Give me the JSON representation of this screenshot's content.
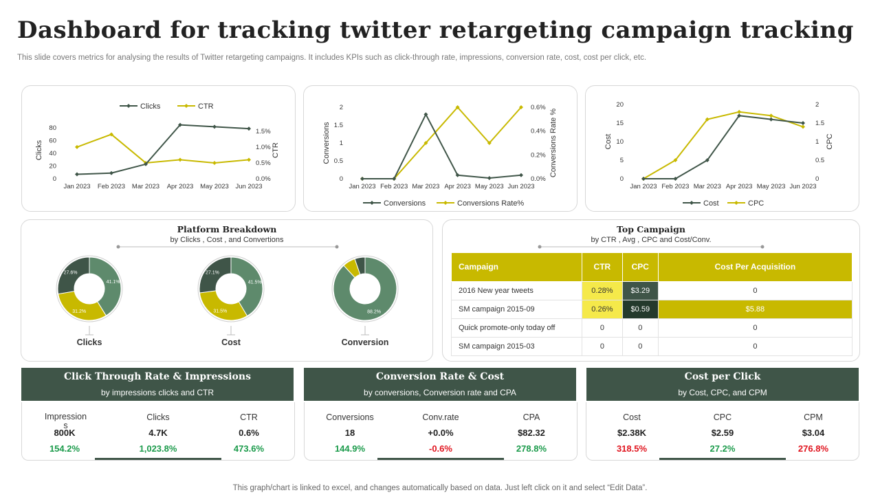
{
  "page": {
    "title": "Dashboard for tracking twitter retargeting campaign tracking",
    "subtitle": "This slide covers metrics for analysing the results of Twitter retargeting campaigns. It includes KPIs such as click-through rate, impressions, conversion rate, cost, cost per click, etc.",
    "footer": "This graph/chart is linked to excel,  and changes automatically based on data. Just left click on it and select “Edit Data”."
  },
  "colors": {
    "dark_green": "#3f5548",
    "mid_green": "#5e8a6c",
    "olive": "#c8b900",
    "light_yellow": "#f5e94a",
    "positive": "#1a9a4a",
    "negative": "#e0141e"
  },
  "chart_data": [
    {
      "type": "line",
      "x": [
        "Jan 2023",
        "Feb 2023",
        "Mar 2023",
        "Apr 2023",
        "May 2023",
        "Jun 2023"
      ],
      "series": [
        {
          "name": "Clicks",
          "axis": "left",
          "color": "#3f5548",
          "values": [
            7,
            9,
            23,
            85,
            82,
            79
          ]
        },
        {
          "name": "CTR",
          "axis": "right",
          "color": "#c8b900",
          "values": [
            1.0,
            1.4,
            0.5,
            0.6,
            0.5,
            0.6
          ]
        }
      ],
      "ylabel": "Clicks",
      "ylabel_right": "CTR",
      "ylim": [
        0,
        90
      ],
      "yticks": [
        "0",
        "20",
        "40",
        "60",
        "80"
      ],
      "ylim_right": [
        0,
        1.8
      ],
      "yticks_right": [
        "0.0%",
        "0.5%",
        "1.0%",
        "1.5%"
      ],
      "legend": "top"
    },
    {
      "type": "line",
      "x": [
        "Jan 2023",
        "Feb 2023",
        "Mar 2023",
        "Apr 2023",
        "May 2023",
        "Jun 2023"
      ],
      "series": [
        {
          "name": "Conversions",
          "axis": "left",
          "color": "#3f5548",
          "values": [
            0,
            0,
            1.8,
            0.1,
            0.02,
            0.1
          ]
        },
        {
          "name": "Conversions Rate%",
          "axis": "right",
          "color": "#c8b900",
          "values": [
            0,
            0,
            0.3,
            0.6,
            0.3,
            0.6
          ]
        }
      ],
      "ylabel": "Conversions",
      "ylabel_right": "Conversions Rate %",
      "ylim": [
        0,
        2
      ],
      "yticks": [
        "0",
        "0.5",
        "1",
        "1.5",
        "2"
      ],
      "ylim_right": [
        0,
        0.6
      ],
      "yticks_right": [
        "0.0%",
        "0.2%",
        "0.4%",
        "0.6%"
      ],
      "legend": "bottom"
    },
    {
      "type": "line",
      "x": [
        "Jan 2023",
        "Feb 2023",
        "Mar 2023",
        "Apr 2023",
        "May 2023",
        "Jun 2023"
      ],
      "series": [
        {
          "name": "Cost",
          "axis": "left",
          "color": "#3f5548",
          "values": [
            0,
            0,
            5,
            17,
            16,
            15
          ]
        },
        {
          "name": "CPC",
          "axis": "right",
          "color": "#c8b900",
          "values": [
            0,
            0.5,
            1.6,
            1.8,
            1.7,
            1.4
          ]
        }
      ],
      "ylabel": "Cost",
      "ylabel_right": "CPC",
      "ylim": [
        0,
        20
      ],
      "yticks": [
        "0",
        "5",
        "10",
        "15",
        "20"
      ],
      "ylim_right": [
        0,
        2
      ],
      "yticks_right": [
        "0",
        "0.5",
        "1",
        "1.5",
        "2"
      ],
      "legend": "bottom"
    },
    {
      "type": "pie",
      "title": "Platform Breakdown",
      "subtitle": "by Clicks , Cost , and Convertions",
      "donuts": [
        {
          "label": "Clicks",
          "slices": [
            {
              "value": 41.1,
              "label": "41.1%",
              "color": "#5e8a6c"
            },
            {
              "value": 31.2,
              "label": "31.2%",
              "color": "#c8b900"
            },
            {
              "value": 27.6,
              "label": "27.6%",
              "color": "#3f5548"
            }
          ]
        },
        {
          "label": "Cost",
          "slices": [
            {
              "value": 41.5,
              "label": "41.5%",
              "color": "#5e8a6c"
            },
            {
              "value": 31.5,
              "label": "31.5%",
              "color": "#c8b900"
            },
            {
              "value": 27.1,
              "label": "27.1%",
              "color": "#3f5548"
            }
          ]
        },
        {
          "label": "Conversion",
          "slices": [
            {
              "value": 88.2,
              "label": "88.2%",
              "color": "#5e8a6c"
            },
            {
              "value": 6.5,
              "label": "",
              "color": "#c8b900"
            },
            {
              "value": 5.3,
              "label": "",
              "color": "#3f5548"
            }
          ]
        }
      ]
    }
  ],
  "top_campaign": {
    "title": "Top Campaign",
    "subtitle": "by  CTR  , Avg , CPC  and Cost/Conv.",
    "headers": [
      "Campaign",
      "CTR",
      "CPC",
      "Cost Per Acquisition"
    ],
    "rows": [
      {
        "cells": [
          "2016 New year tweets",
          "0.28%",
          "$3.29",
          "0"
        ],
        "styles": [
          "",
          "yellow",
          "darkmid",
          ""
        ]
      },
      {
        "cells": [
          "SM campaign 2015-09",
          "0.26%",
          "$0.59",
          "$5.88"
        ],
        "styles": [
          "",
          "yellow",
          "dark",
          "olive"
        ]
      },
      {
        "cells": [
          "Quick promote-only today off",
          "0",
          "0",
          "0"
        ],
        "styles": [
          "",
          "",
          "",
          ""
        ]
      },
      {
        "cells": [
          "SM campaign 2015-03",
          "0",
          "0",
          "0"
        ],
        "styles": [
          "",
          "",
          "",
          ""
        ]
      }
    ]
  },
  "kpi_sections": [
    {
      "title": "Click Through Rate & Impressions",
      "subtitle": "by impressions clicks and CTR",
      "metrics": [
        {
          "label": "Impression s",
          "value": "800K",
          "delta": "154.2%",
          "trend": "positive"
        },
        {
          "label": "Clicks",
          "value": "4.7K",
          "delta": "1,023.8%",
          "trend": "positive"
        },
        {
          "label": "CTR",
          "value": "0.6%",
          "delta": "473.6%",
          "trend": "positive"
        }
      ]
    },
    {
      "title": "Conversion Rate & Cost",
      "subtitle": "by conversions, Conversion rate and CPA",
      "metrics": [
        {
          "label": "Conversions",
          "value": "18",
          "delta": "144.9%",
          "trend": "positive"
        },
        {
          "label": "Conv.rate",
          "value": "+0.0%",
          "delta": "-0.6%",
          "trend": "negative"
        },
        {
          "label": "CPA",
          "value": "$82.32",
          "delta": "278.8%",
          "trend": "positive"
        }
      ]
    },
    {
      "title": "Cost per Click",
      "subtitle": "by Cost, CPC, and CPM",
      "metrics": [
        {
          "label": "Cost",
          "value": "$2.38K",
          "delta": "318.5%",
          "trend": "negative"
        },
        {
          "label": "CPC",
          "value": "$2.59",
          "delta": "27.2%",
          "trend": "positive"
        },
        {
          "label": "CPM",
          "value": "$3.04",
          "delta": "276.8%",
          "trend": "negative"
        }
      ]
    }
  ]
}
